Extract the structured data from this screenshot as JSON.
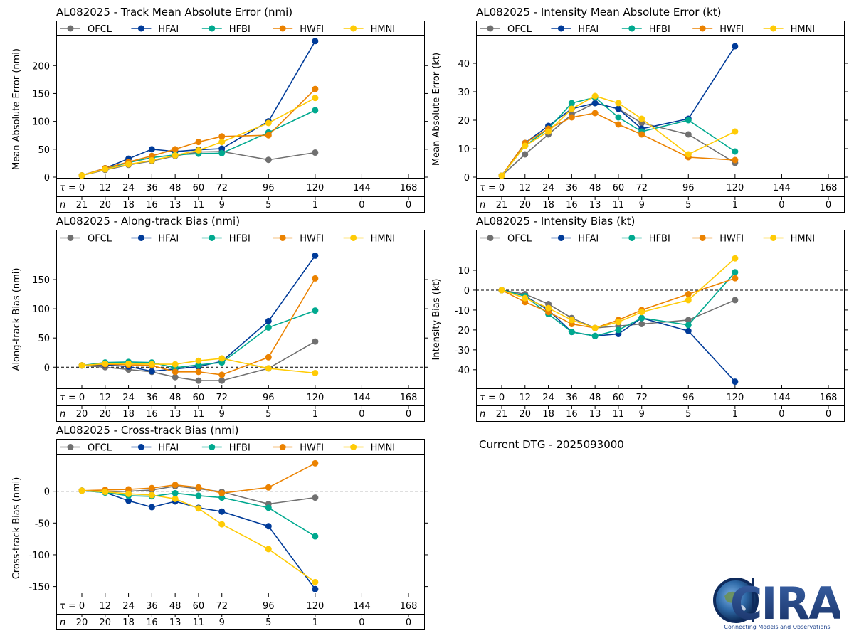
{
  "page": {
    "current_dtg": "Current DTG - 2025093000"
  },
  "colors": {
    "OFCL": "#707070",
    "HFAI": "#003b99",
    "HFBI": "#00a98f",
    "HWFI": "#eb8200",
    "HMNI": "#ffcb05"
  },
  "logo": {
    "text": "CIRA",
    "tagline": "Connecting Models and Observations"
  },
  "chart_data": [
    {
      "id": "track",
      "type": "line",
      "title": "AL082025 - Track Mean Absolute Error (nmi)",
      "ylabel": "Mean Absolute Error (nmi)",
      "x": [
        0,
        12,
        24,
        36,
        48,
        60,
        72,
        96,
        120
      ],
      "yticks": [
        0,
        50,
        100,
        150,
        200
      ],
      "ylim": [
        0,
        245
      ],
      "zero_line": false,
      "lead_labels": [
        "0",
        "12",
        "24",
        "36",
        "48",
        "60",
        "72",
        "96",
        "120",
        "144",
        "168"
      ],
      "n_values": [
        "21",
        "20",
        "18",
        "16",
        "13",
        "11",
        "9",
        "5",
        "1",
        "0",
        "0"
      ],
      "series": [
        {
          "name": "OFCL",
          "values": [
            3,
            13,
            22,
            29,
            38,
            45,
            46,
            31,
            44
          ]
        },
        {
          "name": "HFAI",
          "values": [
            3,
            16,
            33,
            50,
            46,
            49,
            51,
            100,
            244
          ]
        },
        {
          "name": "HFBI",
          "values": [
            3,
            15,
            26,
            35,
            40,
            42,
            43,
            80,
            120
          ]
        },
        {
          "name": "HWFI",
          "values": [
            3,
            16,
            27,
            38,
            50,
            63,
            73,
            75,
            158
          ]
        },
        {
          "name": "HMNI",
          "values": [
            3,
            14,
            23,
            30,
            39,
            48,
            63,
            97,
            142
          ]
        }
      ]
    },
    {
      "id": "intensity",
      "type": "line",
      "title": "AL082025 - Intensity Mean Absolute Error (kt)",
      "ylabel": "Mean Absolute Error (kt)",
      "x": [
        0,
        12,
        24,
        36,
        48,
        60,
        72,
        96,
        120
      ],
      "yticks": [
        0,
        10,
        20,
        30,
        40
      ],
      "ylim": [
        0,
        48
      ],
      "zero_line": false,
      "lead_labels": [
        "0",
        "12",
        "24",
        "36",
        "48",
        "60",
        "72",
        "96",
        "120",
        "144",
        "168"
      ],
      "n_values": [
        "21",
        "20",
        "18",
        "16",
        "13",
        "11",
        "9",
        "5",
        "1",
        "0",
        "0"
      ],
      "series": [
        {
          "name": "OFCL",
          "values": [
            0.5,
            8,
            15,
            22,
            26,
            24,
            19,
            15,
            5
          ]
        },
        {
          "name": "HFAI",
          "values": [
            0.5,
            12,
            18,
            24,
            26,
            24,
            17,
            20.5,
            46
          ]
        },
        {
          "name": "HFBI",
          "values": [
            0.5,
            11,
            17,
            26,
            28,
            21,
            16,
            20,
            9
          ]
        },
        {
          "name": "HWFI",
          "values": [
            0.5,
            12,
            17,
            21,
            22.5,
            18.5,
            15,
            7,
            6
          ]
        },
        {
          "name": "HMNI",
          "values": [
            0.5,
            11,
            16,
            24,
            28.5,
            26,
            20.5,
            8,
            16
          ]
        }
      ]
    },
    {
      "id": "along",
      "type": "line",
      "title": "AL082025 - Along-track Bias (nmi)",
      "ylabel": "Along-track Bias (nmi)",
      "x": [
        0,
        12,
        24,
        36,
        48,
        60,
        72,
        96,
        120
      ],
      "yticks": [
        0,
        50,
        100,
        150
      ],
      "ylim": [
        -35,
        200
      ],
      "zero_line": true,
      "lead_labels": [
        "0",
        "12",
        "24",
        "36",
        "48",
        "60",
        "72",
        "96",
        "120",
        "144",
        "168"
      ],
      "n_values": [
        "20",
        "20",
        "18",
        "16",
        "13",
        "11",
        "9",
        "5",
        "1",
        "0",
        "0"
      ],
      "series": [
        {
          "name": "OFCL",
          "values": [
            3,
            0,
            -4,
            -8,
            -17,
            -23,
            -23,
            -2,
            44
          ]
        },
        {
          "name": "HFAI",
          "values": [
            3,
            4,
            1,
            -7,
            -3,
            1,
            10,
            79,
            191
          ]
        },
        {
          "name": "HFBI",
          "values": [
            3,
            8,
            9,
            8,
            -1,
            4,
            8,
            68,
            97
          ]
        },
        {
          "name": "HWFI",
          "values": [
            3,
            5,
            4,
            3,
            -8,
            -8,
            -13,
            17,
            152
          ]
        },
        {
          "name": "HMNI",
          "values": [
            3,
            6,
            6,
            5,
            5,
            11,
            15,
            -2,
            -10
          ]
        }
      ]
    },
    {
      "id": "intbias",
      "type": "line",
      "title": "AL082025 - Intensity Bias (kt)",
      "ylabel": "Intensity Bias (kt)",
      "x": [
        0,
        12,
        24,
        36,
        48,
        60,
        72,
        96,
        120
      ],
      "yticks": [
        -40,
        -30,
        -20,
        -10,
        0,
        10
      ],
      "ylim": [
        -49,
        20
      ],
      "zero_line": true,
      "lead_labels": [
        "0",
        "12",
        "24",
        "36",
        "48",
        "60",
        "72",
        "96",
        "120",
        "144",
        "168"
      ],
      "n_values": [
        "21",
        "20",
        "18",
        "16",
        "13",
        "11",
        "9",
        "5",
        "1",
        "0",
        "0"
      ],
      "series": [
        {
          "name": "OFCL",
          "values": [
            0,
            -2,
            -7,
            -14,
            -19,
            -18,
            -17,
            -15,
            -5
          ]
        },
        {
          "name": "HFAI",
          "values": [
            0,
            -3,
            -10,
            -21,
            -23,
            -22,
            -14,
            -20.5,
            -46
          ]
        },
        {
          "name": "HFBI",
          "values": [
            0,
            -3,
            -12,
            -21,
            -23,
            -20,
            -14,
            -17.5,
            9
          ]
        },
        {
          "name": "HWFI",
          "values": [
            0,
            -6,
            -11,
            -17,
            -19,
            -15,
            -10,
            -2,
            6
          ]
        },
        {
          "name": "HMNI",
          "values": [
            0,
            -4,
            -9,
            -15,
            -19,
            -16,
            -11,
            -5,
            16
          ]
        }
      ]
    },
    {
      "id": "cross",
      "type": "line",
      "title": "AL082025 - Cross-track Bias (nmi)",
      "ylabel": "Cross-track Bias (nmi)",
      "x": [
        0,
        12,
        24,
        36,
        48,
        60,
        72,
        96,
        120
      ],
      "yticks": [
        -150,
        -100,
        -50,
        0
      ],
      "ylim": [
        -165,
        50
      ],
      "zero_line": true,
      "lead_labels": [
        "0",
        "12",
        "24",
        "36",
        "48",
        "60",
        "72",
        "96",
        "120",
        "144",
        "168"
      ],
      "n_values": [
        "20",
        "20",
        "18",
        "16",
        "13",
        "11",
        "9",
        "5",
        "1",
        "0",
        "0"
      ],
      "series": [
        {
          "name": "OFCL",
          "values": [
            1,
            -1,
            0,
            2,
            8,
            4,
            -1,
            -20,
            -10
          ]
        },
        {
          "name": "HFAI",
          "values": [
            1,
            -2,
            -15,
            -25,
            -16,
            -26,
            -32,
            -55,
            -154
          ]
        },
        {
          "name": "HFBI",
          "values": [
            1,
            -2,
            -7,
            -8,
            -3,
            -7,
            -10,
            -26,
            -71
          ]
        },
        {
          "name": "HWFI",
          "values": [
            1,
            2,
            3,
            5,
            10,
            6,
            -3,
            6,
            44
          ]
        },
        {
          "name": "HMNI",
          "values": [
            1,
            -1,
            -4,
            -6,
            -12,
            -27,
            -52,
            -91,
            -143
          ]
        }
      ]
    }
  ]
}
